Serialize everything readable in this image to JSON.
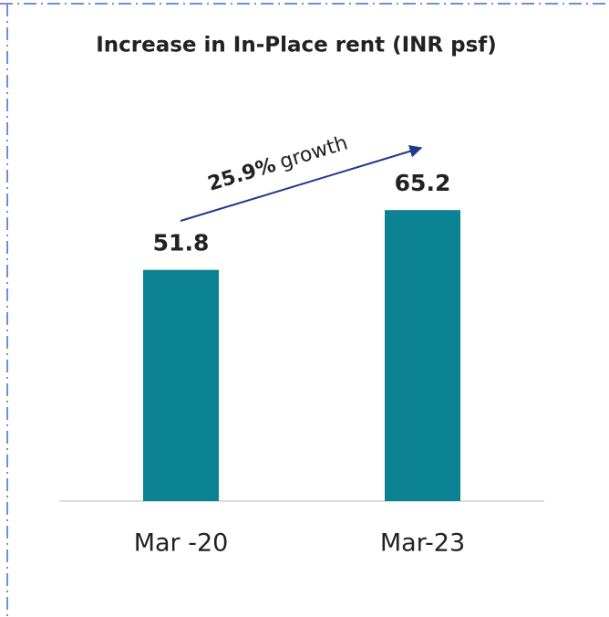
{
  "chart_data": {
    "type": "bar",
    "title": "Increase in In-Place rent (INR psf)",
    "categories": [
      "Mar -20",
      "Mar-23"
    ],
    "values": [
      51.8,
      65.2
    ],
    "color": "#0a8291",
    "annotation": [
      "25.9%",
      "growth"
    ]
  }
}
